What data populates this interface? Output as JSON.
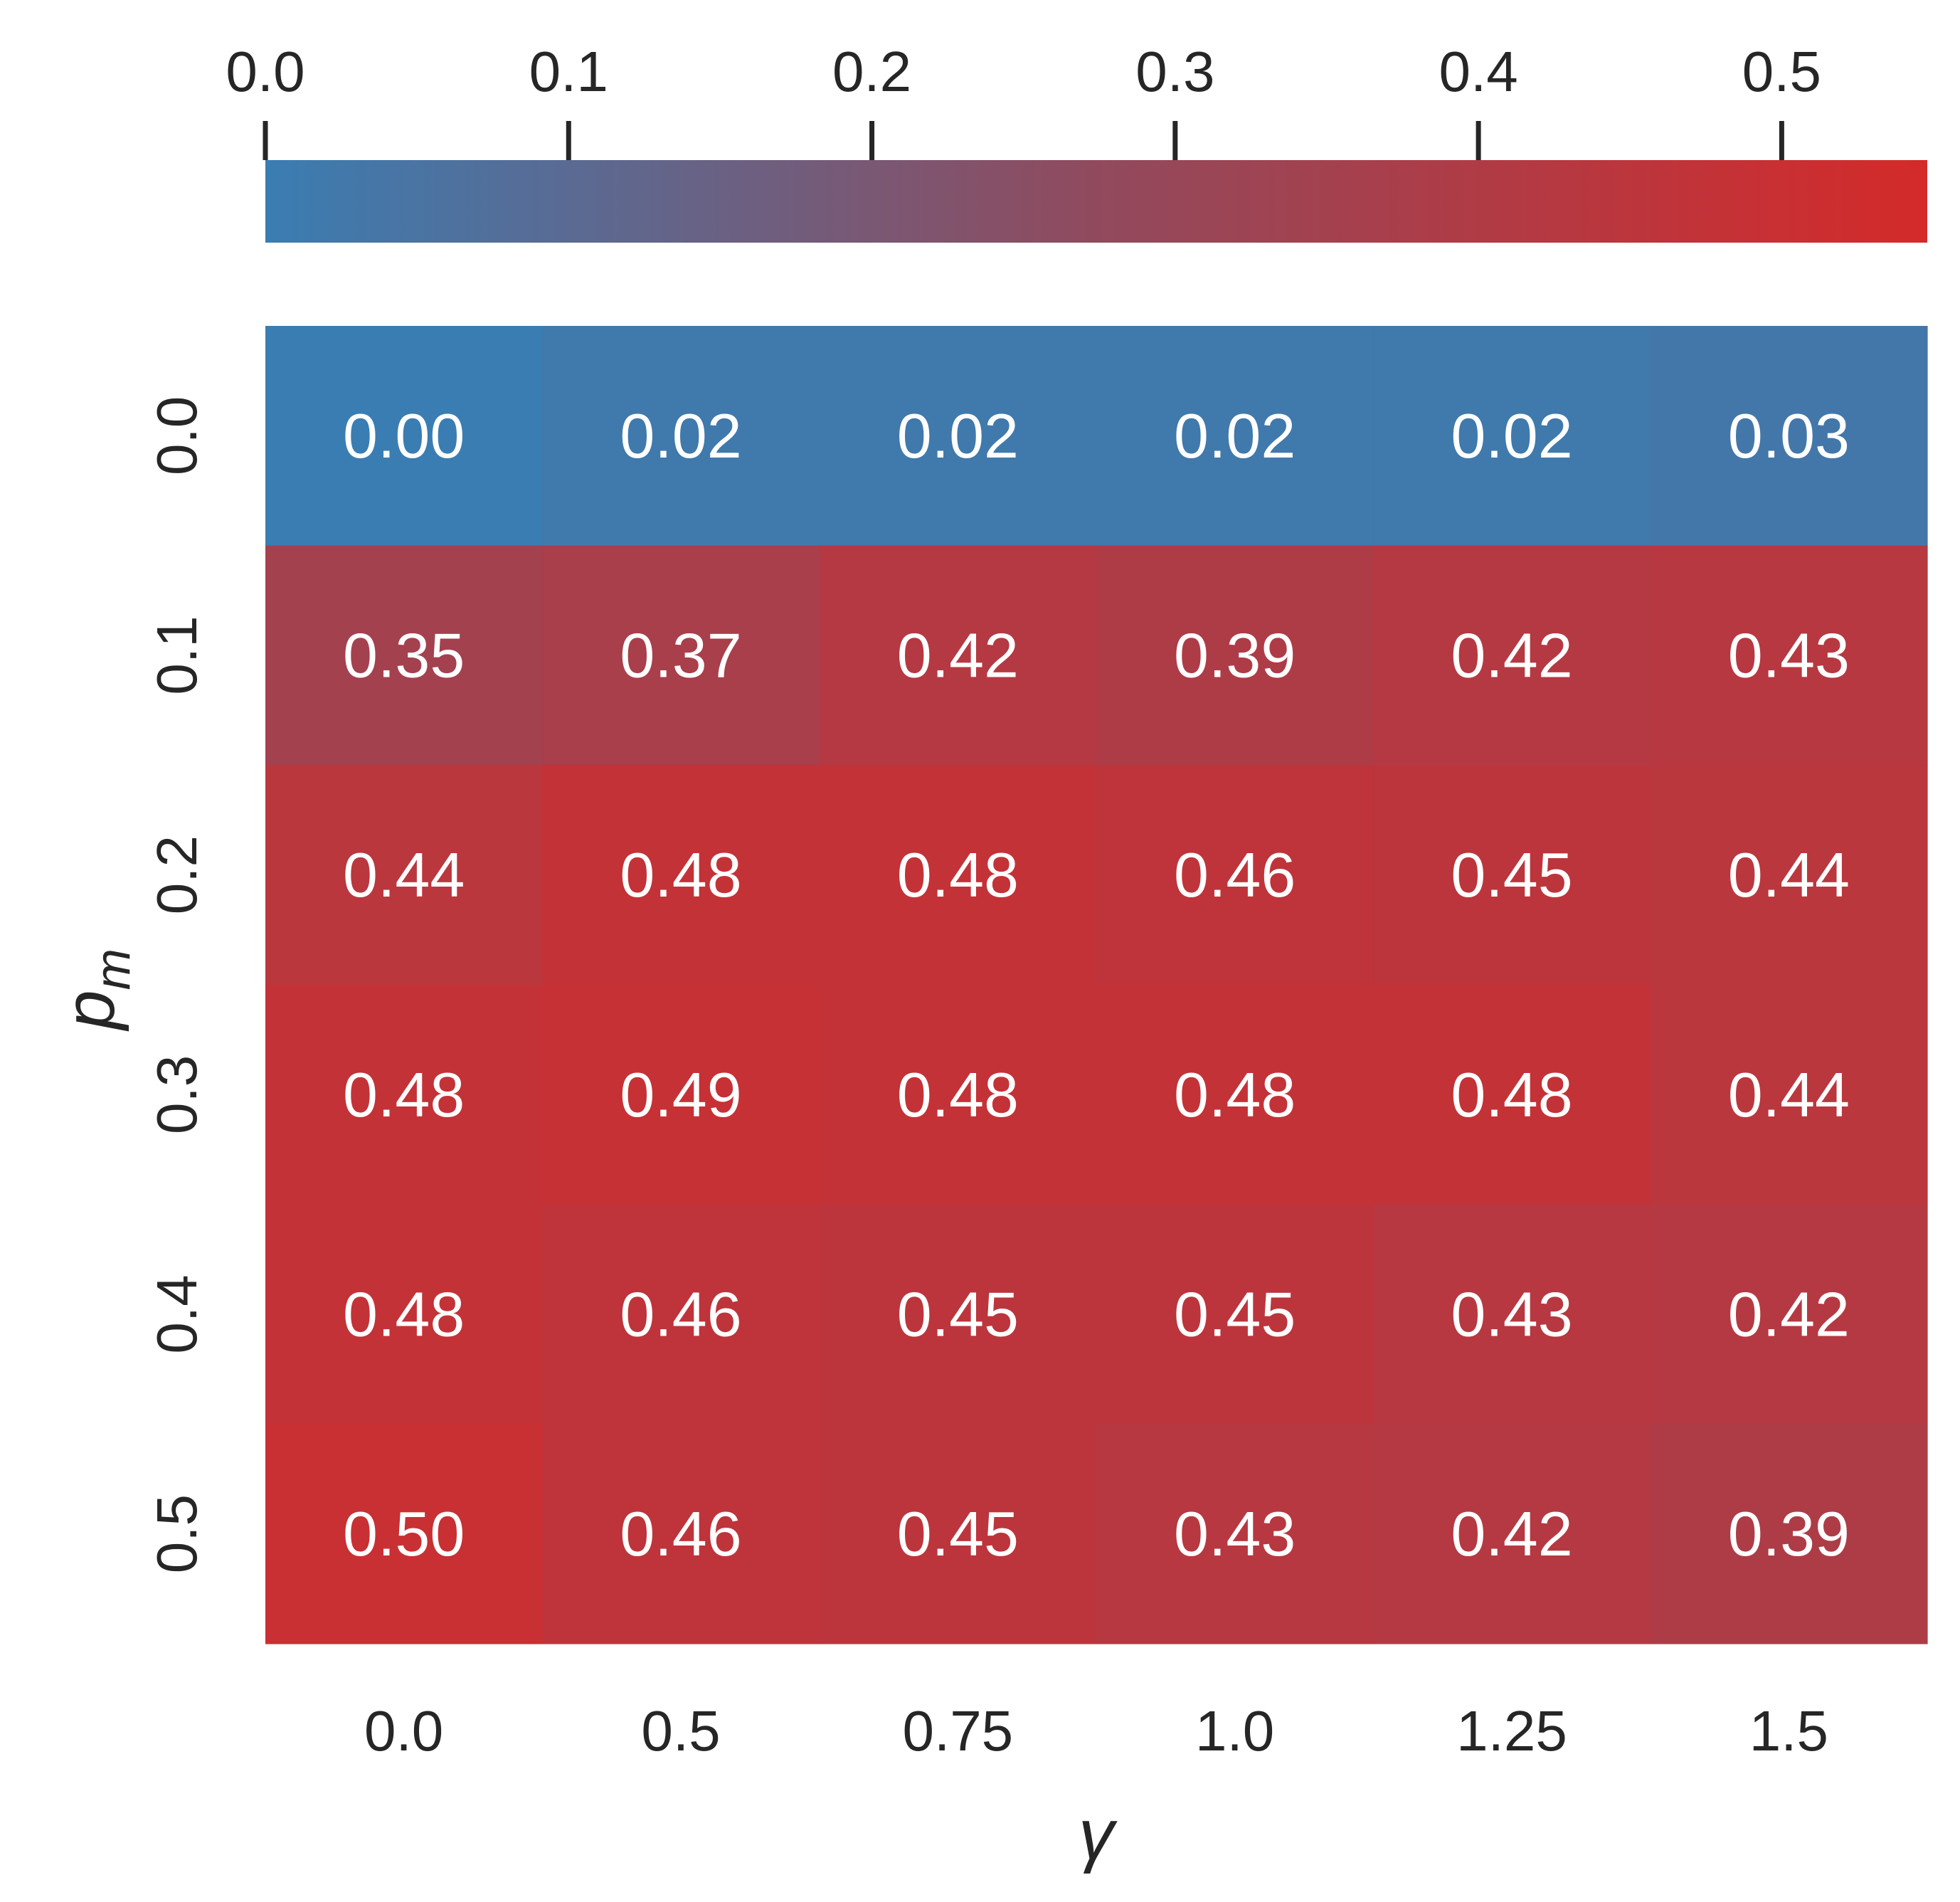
{
  "chart_data": {
    "type": "heatmap",
    "xlabel": "γ",
    "ylabel_main": "p",
    "ylabel_sub": "m",
    "x_categories": [
      "0.0",
      "0.5",
      "0.75",
      "1.0",
      "1.25",
      "1.5"
    ],
    "y_categories": [
      "0.0",
      "0.1",
      "0.2",
      "0.3",
      "0.4",
      "0.5"
    ],
    "values": [
      [
        0.0,
        0.02,
        0.02,
        0.02,
        0.02,
        0.03
      ],
      [
        0.35,
        0.37,
        0.42,
        0.39,
        0.42,
        0.43
      ],
      [
        0.44,
        0.48,
        0.48,
        0.46,
        0.45,
        0.44
      ],
      [
        0.48,
        0.49,
        0.48,
        0.48,
        0.48,
        0.44
      ],
      [
        0.48,
        0.46,
        0.45,
        0.45,
        0.43,
        0.42
      ],
      [
        0.5,
        0.46,
        0.45,
        0.43,
        0.42,
        0.39
      ]
    ],
    "value_labels": [
      [
        "0.00",
        "0.02",
        "0.02",
        "0.02",
        "0.02",
        "0.03"
      ],
      [
        "0.35",
        "0.37",
        "0.42",
        "0.39",
        "0.42",
        "0.43"
      ],
      [
        "0.44",
        "0.48",
        "0.48",
        "0.46",
        "0.45",
        "0.44"
      ],
      [
        "0.48",
        "0.49",
        "0.48",
        "0.48",
        "0.48",
        "0.44"
      ],
      [
        "0.48",
        "0.46",
        "0.45",
        "0.45",
        "0.43",
        "0.42"
      ],
      [
        "0.50",
        "0.46",
        "0.45",
        "0.43",
        "0.42",
        "0.39"
      ]
    ],
    "colorbar": {
      "position": "top",
      "vmin": 0.0,
      "vmax": 0.548,
      "ticks": [
        0.0,
        0.1,
        0.2,
        0.3,
        0.4,
        0.5
      ],
      "tick_labels": [
        "0.0",
        "0.1",
        "0.2",
        "0.3",
        "0.4",
        "0.5"
      ],
      "color_low": "#3a7db2",
      "color_mid": "#914a5d",
      "color_high": "#d42a2a"
    },
    "grid": false
  }
}
